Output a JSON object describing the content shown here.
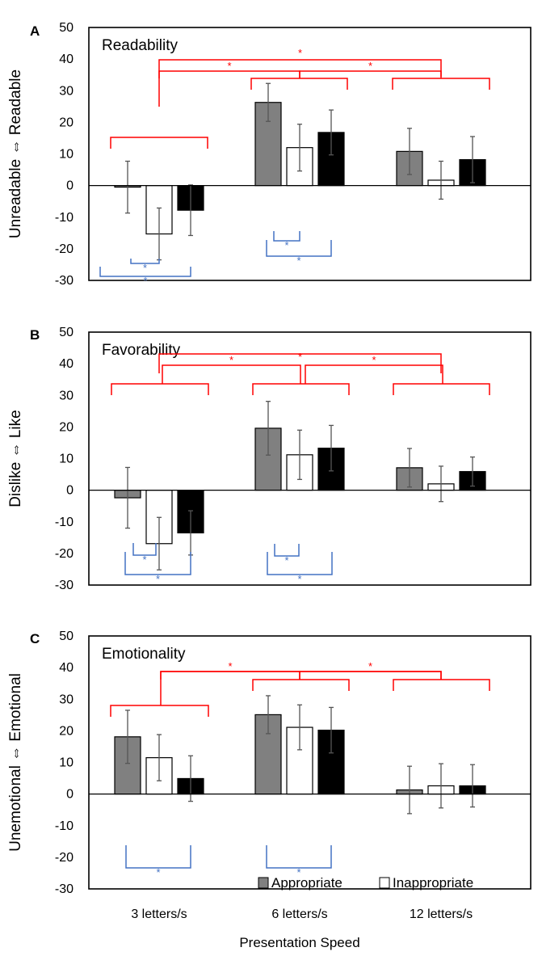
{
  "figure": {
    "xlabel": "Presentation Speed",
    "legend": {
      "position": "bottom-right of panel C",
      "items": [
        {
          "label": "Appropriate"
        },
        {
          "label": "Inappropriate"
        }
      ]
    }
  },
  "colors": {
    "Appropriate": "#808080",
    "Inappropriate": "#ffffff",
    "Third": "#000000",
    "sig_between_speed": "#ff0000",
    "sig_within_speed": "#4472c4",
    "error_bar": "#555555"
  },
  "chart_data": [
    {
      "type": "bar",
      "panel": "A",
      "title": "Readability",
      "ylabel": "Unreadable ⇔ Readable",
      "ylim": [
        -30,
        50
      ],
      "yticks": [
        "50",
        "40",
        "30",
        "20",
        "10",
        "0",
        "-10",
        "-20",
        "-30"
      ],
      "categories": [
        "3 letters/s",
        "6 letters/s",
        "12 letters/s"
      ],
      "series": [
        {
          "name": "Appropriate",
          "values": [
            -0.5,
            26.3,
            10.8
          ],
          "errors": [
            8.2,
            6.0,
            7.3
          ]
        },
        {
          "name": "Inappropriate",
          "values": [
            -15.3,
            12.0,
            1.7
          ],
          "errors": [
            8.2,
            7.4,
            6.0
          ]
        },
        {
          "values": [
            -7.8,
            16.8,
            8.2
          ],
          "errors": [
            8.0,
            7.1,
            7.3
          ]
        }
      ],
      "significance": {
        "symbol": "*",
        "between_speed_brackets": 3,
        "within_speed_brackets": 4
      }
    },
    {
      "type": "bar",
      "panel": "B",
      "title": "Favorability",
      "ylabel": "Dislike ⇔ Like",
      "ylim": [
        -30,
        50
      ],
      "yticks": [
        "50",
        "40",
        "30",
        "20",
        "10",
        "0",
        "-10",
        "-20",
        "-30"
      ],
      "categories": [
        "3 letters/s",
        "6 letters/s",
        "12 letters/s"
      ],
      "series": [
        {
          "name": "Appropriate",
          "values": [
            -2.4,
            19.6,
            7.1
          ],
          "errors": [
            9.6,
            8.5,
            6.1
          ]
        },
        {
          "name": "Inappropriate",
          "values": [
            -16.9,
            11.2,
            2.0
          ],
          "errors": [
            8.3,
            7.8,
            5.6
          ]
        },
        {
          "values": [
            -13.5,
            13.3,
            5.9
          ],
          "errors": [
            7.0,
            7.2,
            4.6
          ]
        }
      ],
      "significance": {
        "symbol": "*",
        "between_speed_brackets": 3,
        "within_speed_brackets": 4
      }
    },
    {
      "type": "bar",
      "panel": "C",
      "title": "Emotionality",
      "ylabel": "Unemotional ⇔ Emotional",
      "ylim": [
        -30,
        50
      ],
      "yticks": [
        "50",
        "40",
        "30",
        "20",
        "10",
        "0",
        "-10",
        "-20",
        "-30"
      ],
      "categories": [
        "3 letters/s",
        "6 letters/s",
        "12 letters/s"
      ],
      "series": [
        {
          "name": "Appropriate",
          "values": [
            18.1,
            25.1,
            1.3
          ],
          "errors": [
            8.4,
            6.0,
            7.5
          ]
        },
        {
          "name": "Inappropriate",
          "values": [
            11.5,
            21.1,
            2.6
          ],
          "errors": [
            7.3,
            7.1,
            7.0
          ]
        },
        {
          "values": [
            4.9,
            20.2,
            2.6
          ],
          "errors": [
            7.2,
            7.2,
            6.7
          ]
        }
      ],
      "significance": {
        "symbol": "*",
        "between_speed_brackets": 2,
        "within_speed_brackets": 2
      }
    }
  ]
}
